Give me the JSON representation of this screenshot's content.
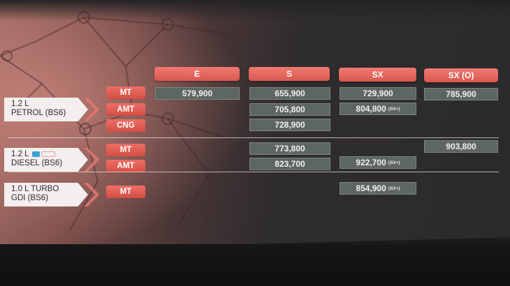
{
  "variants": [
    "E",
    "S",
    "SX",
    "SX (O)"
  ],
  "engines": [
    {
      "line1": "1.2 L",
      "line2": "PETROL (BS6)"
    },
    {
      "line1": "1.2 L",
      "line2": "DIESEL (BS6)"
    },
    {
      "line1": "1.0 L TURBO",
      "line2": "GDI (BS6)"
    }
  ],
  "transmissions": {
    "petrol_mt": "MT",
    "petrol_amt": "AMT",
    "petrol_cng": "CNG",
    "diesel_mt": "MT",
    "diesel_amt": "AMT",
    "turbo_mt": "MT"
  },
  "prices": {
    "petrol_mt_e": "579,900",
    "petrol_mt_s": "655,900",
    "petrol_mt_sx": "729,900",
    "petrol_mt_sxo": "785,900",
    "petrol_amt_s": "705,800",
    "petrol_amt_sx": "804,800",
    "petrol_cng_s": "728,900",
    "diesel_mt_s": "773,800",
    "diesel_mt_sxo": "903,800",
    "diesel_amt_s": "823,700",
    "diesel_amt_sx": "922,700",
    "turbo_mt_sx": "854,900"
  },
  "suffix": "(SX+)"
}
